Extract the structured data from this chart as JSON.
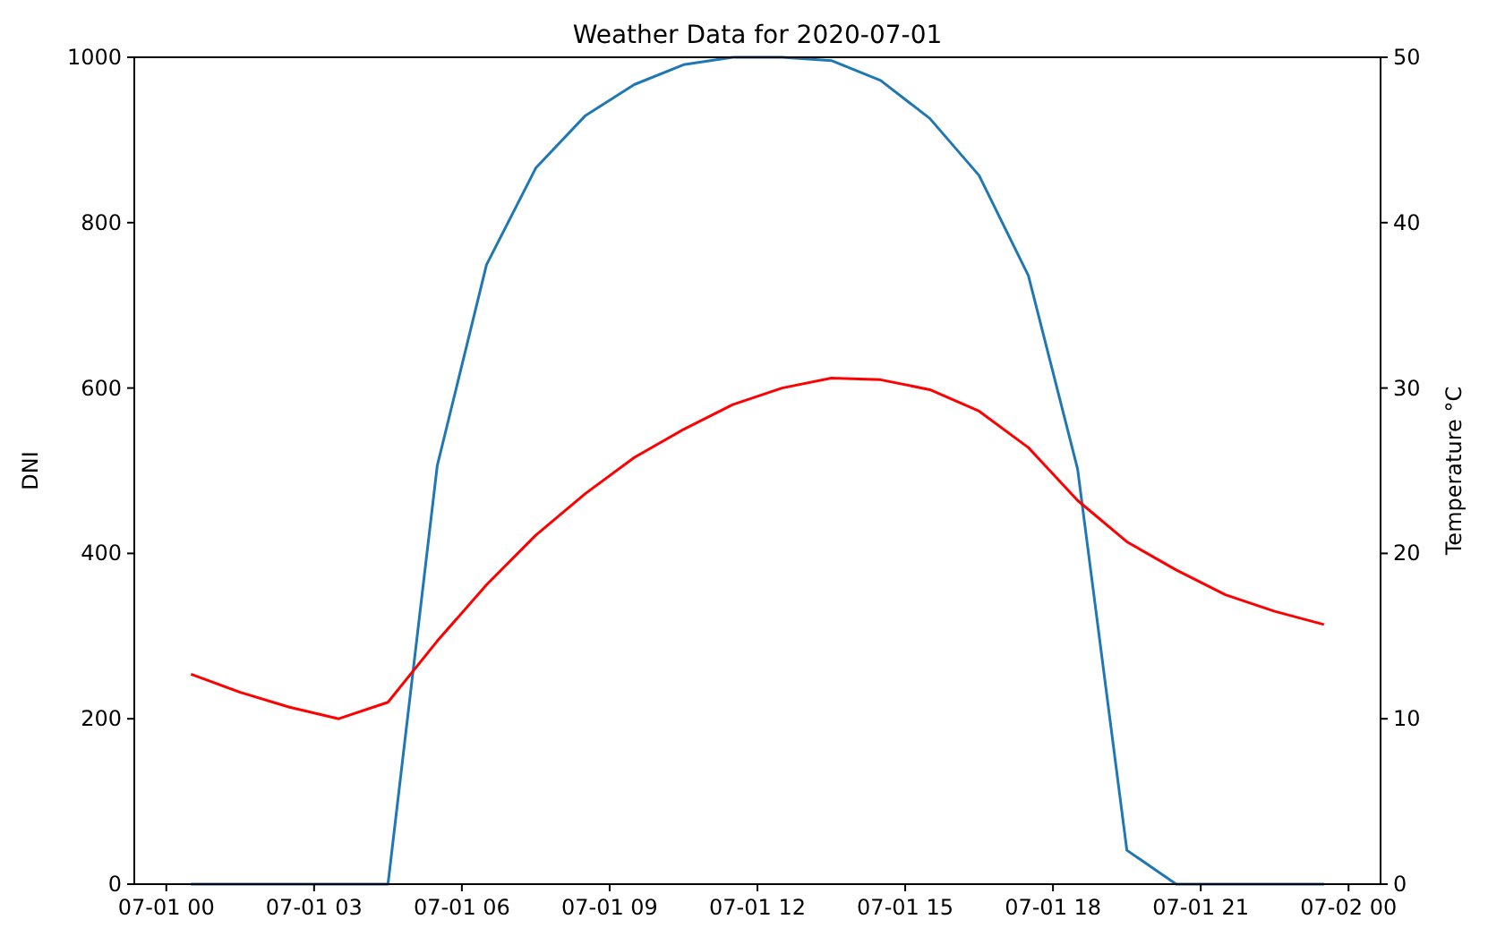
{
  "chart_data": {
    "type": "line",
    "title": "Weather Data for 2020-07-01",
    "ylabel": "DNI",
    "y2label": "Temperature °C",
    "x": [
      "2020-07-01T00:30",
      "2020-07-01T01:30",
      "2020-07-01T02:30",
      "2020-07-01T03:30",
      "2020-07-01T04:30",
      "2020-07-01T05:30",
      "2020-07-01T06:30",
      "2020-07-01T07:30",
      "2020-07-01T08:30",
      "2020-07-01T09:30",
      "2020-07-01T10:30",
      "2020-07-01T11:30",
      "2020-07-01T12:30",
      "2020-07-01T13:30",
      "2020-07-01T14:30",
      "2020-07-01T15:30",
      "2020-07-01T16:30",
      "2020-07-01T17:30",
      "2020-07-01T18:30",
      "2020-07-01T19:30",
      "2020-07-01T20:30",
      "2020-07-01T21:30",
      "2020-07-01T22:30",
      "2020-07-01T23:30"
    ],
    "series": [
      {
        "color": "#1f77b4",
        "values": [
          0,
          0,
          0,
          0,
          0,
          506,
          749,
          866,
          929,
          967,
          991,
          1000,
          1000,
          996,
          972,
          926,
          857,
          736,
          502,
          41,
          0,
          0,
          0,
          0
        ]
      },
      {
        "color": "#ff0000",
        "axis": "y2",
        "values": [
          12.7,
          11.6,
          10.7,
          10.0,
          11.0,
          14.7,
          18.1,
          21.1,
          23.6,
          25.8,
          27.5,
          29.0,
          30.0,
          30.6,
          30.5,
          29.9,
          28.6,
          26.4,
          23.2,
          20.7,
          19.0,
          17.5,
          16.5,
          15.7
        ]
      }
    ],
    "xlim": [
      "2020-06-30T23:21",
      "2020-07-02T00:39"
    ],
    "xticks": [
      {
        "value": "2020-07-01T00:00",
        "label": "07-01 00"
      },
      {
        "value": "2020-07-01T03:00",
        "label": "07-01 03"
      },
      {
        "value": "2020-07-01T06:00",
        "label": "07-01 06"
      },
      {
        "value": "2020-07-01T09:00",
        "label": "07-01 09"
      },
      {
        "value": "2020-07-01T12:00",
        "label": "07-01 12"
      },
      {
        "value": "2020-07-01T15:00",
        "label": "07-01 15"
      },
      {
        "value": "2020-07-01T18:00",
        "label": "07-01 18"
      },
      {
        "value": "2020-07-01T21:00",
        "label": "07-01 21"
      },
      {
        "value": "2020-07-02T00:00",
        "label": "07-02 00"
      }
    ],
    "ylim": [
      0,
      1000
    ],
    "yticks": [
      0,
      200,
      400,
      600,
      800,
      1000
    ],
    "y2lim": [
      0,
      50
    ],
    "y2ticks": [
      0,
      10,
      20,
      30,
      40,
      50
    ]
  }
}
